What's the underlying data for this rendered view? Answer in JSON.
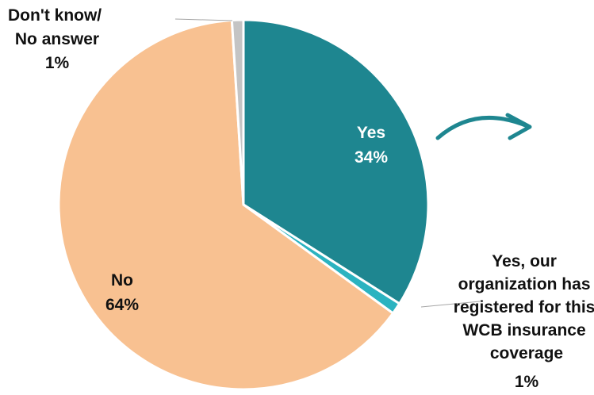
{
  "chart_data": {
    "type": "pie",
    "slices": [
      {
        "label_lines": [
          "Yes,",
          "34%"
        ],
        "label_text": "Yes",
        "value_text": "34%",
        "value": 34,
        "color": "#1e8690"
      },
      {
        "label_lines": [
          "Yes, our",
          "organization has",
          "registered for this",
          "WCB insurance",
          "coverage",
          "1%"
        ],
        "label_text": "Yes, our organization has registered for this WCB insurance coverage",
        "value_text": "1%",
        "value": 1,
        "color": "#2bb3c0"
      },
      {
        "label_text": "No",
        "value_text": "64%",
        "value": 64,
        "color": "#f8c191"
      },
      {
        "label_text": "Don't know/ No answer",
        "value_text": "1%",
        "value": 1,
        "color": "#c4c4c4"
      }
    ],
    "start_angle_deg": 0,
    "direction": "clockwise",
    "leader_line_color": "#a6a6a6",
    "legend": "none",
    "arrow_color": "#1e8690"
  }
}
